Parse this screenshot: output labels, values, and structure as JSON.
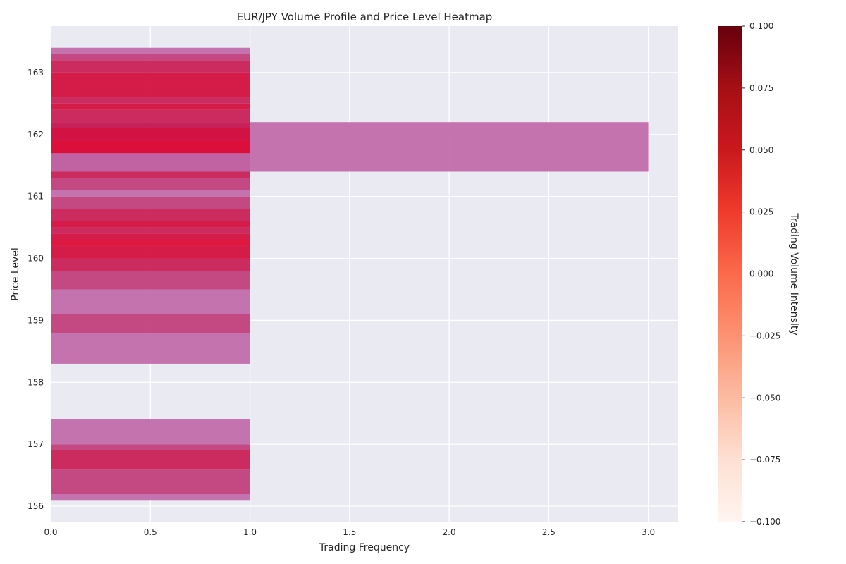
{
  "chart_data": {
    "type": "bar",
    "orientation": "horizontal",
    "title": "EUR/JPY Volume Profile and Price Level Heatmap",
    "xlabel": "Trading Frequency",
    "ylabel": "Price Level",
    "xlim": [
      0,
      3.15
    ],
    "ylim": [
      155.75,
      163.75
    ],
    "xticks": [
      0.0,
      0.5,
      1.0,
      1.5,
      2.0,
      2.5,
      3.0
    ],
    "xtick_labels": [
      "0.0",
      "0.5",
      "1.0",
      "1.5",
      "2.0",
      "2.5",
      "3.0"
    ],
    "yticks": [
      156,
      157,
      158,
      159,
      160,
      161,
      162,
      163
    ],
    "ytick_labels": [
      "156",
      "157",
      "158",
      "159",
      "160",
      "161",
      "162",
      "163"
    ],
    "grid": true,
    "bars": [
      {
        "low": 156.1,
        "high": 156.2,
        "value": 1,
        "color": "#c068a8"
      },
      {
        "low": 156.2,
        "high": 156.6,
        "value": 1,
        "color": "#c03a78"
      },
      {
        "low": 156.6,
        "high": 156.9,
        "value": 1,
        "color": "#c81a52"
      },
      {
        "low": 156.9,
        "high": 157.0,
        "value": 1,
        "color": "#c03a78"
      },
      {
        "low": 157.0,
        "high": 157.4,
        "value": 1,
        "color": "#c068a8"
      },
      {
        "low": 158.3,
        "high": 158.8,
        "value": 1,
        "color": "#c068a8"
      },
      {
        "low": 158.8,
        "high": 159.1,
        "value": 1,
        "color": "#c03a78"
      },
      {
        "low": 159.1,
        "high": 159.5,
        "value": 1,
        "color": "#c068a8"
      },
      {
        "low": 159.5,
        "high": 159.6,
        "value": 1,
        "color": "#c03a78"
      },
      {
        "low": 159.6,
        "high": 159.8,
        "value": 1,
        "color": "#c03a78"
      },
      {
        "low": 159.8,
        "high": 160.0,
        "value": 1,
        "color": "#c81a52"
      },
      {
        "low": 160.0,
        "high": 160.2,
        "value": 1,
        "color": "#d30a3a"
      },
      {
        "low": 160.2,
        "high": 160.3,
        "value": 1,
        "color": "#dd0530"
      },
      {
        "low": 160.3,
        "high": 160.4,
        "value": 1,
        "color": "#d30a3a"
      },
      {
        "low": 160.4,
        "high": 160.5,
        "value": 1,
        "color": "#c81a52"
      },
      {
        "low": 160.5,
        "high": 160.6,
        "value": 1,
        "color": "#d30a3a"
      },
      {
        "low": 160.6,
        "high": 160.8,
        "value": 1,
        "color": "#c81a52"
      },
      {
        "low": 160.8,
        "high": 161.0,
        "value": 1,
        "color": "#c03a78"
      },
      {
        "low": 161.0,
        "high": 161.1,
        "value": 1,
        "color": "#c068a8"
      },
      {
        "low": 161.1,
        "high": 161.3,
        "value": 1,
        "color": "#c03a78"
      },
      {
        "low": 161.3,
        "high": 161.4,
        "value": 1,
        "color": "#c81a52"
      },
      {
        "low": 161.4,
        "high": 161.7,
        "value": 1,
        "color": "#c81a52"
      },
      {
        "low": 161.4,
        "high": 162.2,
        "value": 3,
        "color": "#c068a8"
      },
      {
        "low": 161.7,
        "high": 161.9,
        "value": 1,
        "color": "#dd0530"
      },
      {
        "low": 161.9,
        "high": 162.1,
        "value": 1,
        "color": "#d30a3a"
      },
      {
        "low": 162.1,
        "high": 162.2,
        "value": 1,
        "color": "#c81a52"
      },
      {
        "low": 162.2,
        "high": 162.4,
        "value": 1,
        "color": "#c81a52"
      },
      {
        "low": 162.4,
        "high": 162.5,
        "value": 1,
        "color": "#d30a3a"
      },
      {
        "low": 162.5,
        "high": 162.6,
        "value": 1,
        "color": "#c81a52"
      },
      {
        "low": 162.6,
        "high": 163.0,
        "value": 1,
        "color": "#d30a3a"
      },
      {
        "low": 163.0,
        "high": 163.2,
        "value": 1,
        "color": "#c81a52"
      },
      {
        "low": 163.2,
        "high": 163.3,
        "value": 1,
        "color": "#c03a78"
      },
      {
        "low": 163.3,
        "high": 163.4,
        "value": 1,
        "color": "#c068a8"
      }
    ],
    "colorbar": {
      "label": "Trading Volume Intensity",
      "range": [
        -0.1,
        0.1
      ],
      "ticks": [
        -0.1,
        -0.075,
        -0.05,
        -0.025,
        0.0,
        0.025,
        0.05,
        0.075,
        0.1
      ],
      "tick_labels": [
        "−0.100",
        "−0.075",
        "−0.050",
        "−0.025",
        "0.000",
        "0.025",
        "0.050",
        "0.075",
        "0.100"
      ],
      "colormap": "Reds"
    },
    "colors": {
      "axes_bg": "#eaeaf2",
      "grid": "#ffffff"
    }
  }
}
